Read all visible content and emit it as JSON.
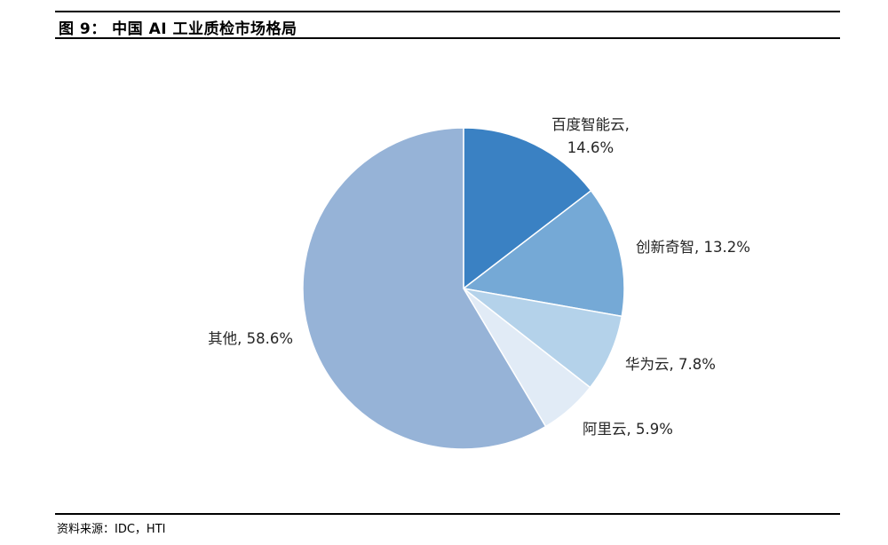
{
  "header": {
    "title": "图 9： 中国 AI 工业质检市场格局"
  },
  "footer": {
    "source": "资料来源：IDC，HTI"
  },
  "chart_data": {
    "type": "pie",
    "title": "",
    "slices": [
      {
        "name": "百度智能云",
        "value": 14.6,
        "label_line1": "百度智能云,",
        "label_line2": "14.6%",
        "color": "#3a81c3"
      },
      {
        "name": "创新奇智",
        "value": 13.2,
        "label_line1": "创新奇智, 13.2%",
        "label_line2": "",
        "color": "#75a9d6"
      },
      {
        "name": "华为云",
        "value": 7.8,
        "label_line1": "华为云, 7.8%",
        "label_line2": "",
        "color": "#b4d2ea"
      },
      {
        "name": "阿里云",
        "value": 5.9,
        "label_line1": "阿里云, 5.9%",
        "label_line2": "",
        "color": "#e1ebf6"
      },
      {
        "name": "其他",
        "value": 58.6,
        "label_line1": "其他, 58.6%",
        "label_line2": "",
        "color": "#96b3d7"
      }
    ],
    "start_angle": "12 o'clock",
    "direction": "clockwise",
    "legend": "none"
  }
}
